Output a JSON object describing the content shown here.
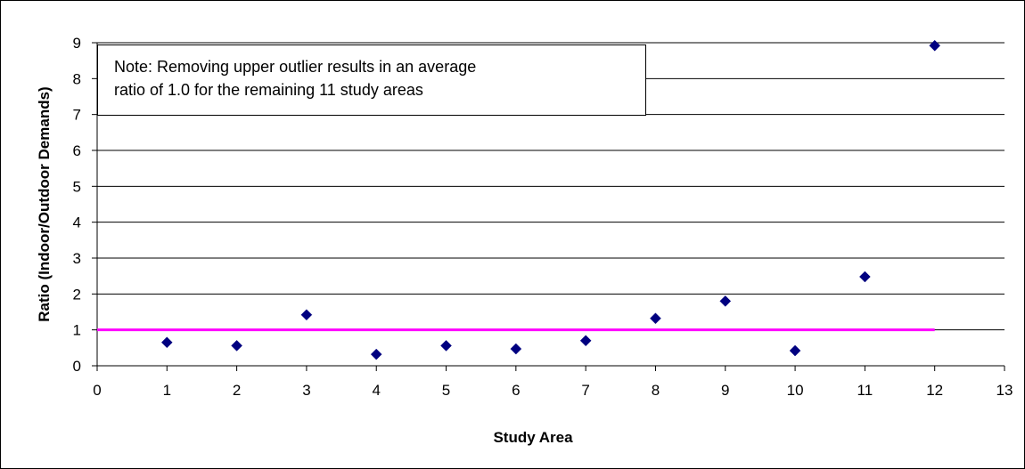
{
  "chart_data": {
    "type": "scatter",
    "xlabel": "Study Area",
    "ylabel": "Ratio (Indoor/Outdoor Demands)",
    "xlim": [
      0,
      13
    ],
    "ylim": [
      0,
      9
    ],
    "xticks": [
      0,
      1,
      2,
      3,
      4,
      5,
      6,
      7,
      8,
      9,
      10,
      11,
      12,
      13
    ],
    "yticks": [
      0,
      1,
      2,
      3,
      4,
      5,
      6,
      7,
      8,
      9
    ],
    "grid": "horizontal",
    "series": [
      {
        "x": [
          1,
          2,
          3,
          4,
          5,
          6,
          7,
          8,
          9,
          10,
          11,
          12
        ],
        "y": [
          0.65,
          0.56,
          1.42,
          0.32,
          0.56,
          0.47,
          0.7,
          1.32,
          1.8,
          0.42,
          2.48,
          8.92
        ],
        "color": "#000080",
        "marker": "diamond"
      }
    ],
    "reference_line": {
      "y": 1.0,
      "x_range": [
        0,
        12
      ],
      "color": "#ff00ff"
    },
    "annotation": {
      "lines": [
        "Note: Removing upper outlier results in an average",
        "ratio of 1.0 for the remaining 11 study areas"
      ]
    }
  }
}
